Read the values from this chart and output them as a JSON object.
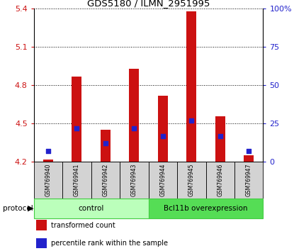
{
  "title": "GDS5180 / ILMN_2951995",
  "samples": [
    "GSM769940",
    "GSM769941",
    "GSM769942",
    "GSM769943",
    "GSM769944",
    "GSM769945",
    "GSM769946",
    "GSM769947"
  ],
  "transformed_count": [
    4.22,
    4.87,
    4.45,
    4.93,
    4.72,
    5.38,
    4.56,
    4.25
  ],
  "percentile_rank": [
    7,
    22,
    12,
    22,
    17,
    27,
    17,
    7
  ],
  "ylim_left": [
    4.2,
    5.4
  ],
  "ylim_right": [
    0,
    100
  ],
  "yticks_left": [
    4.2,
    4.5,
    4.8,
    5.1,
    5.4
  ],
  "yticks_right": [
    0,
    25,
    50,
    75,
    100
  ],
  "ytick_labels_right": [
    "0",
    "25",
    "50",
    "75",
    "100%"
  ],
  "bar_color": "#cc1111",
  "blue_marker_color": "#2222cc",
  "bar_bottom": 4.2,
  "groups": [
    {
      "label": "control",
      "samples": [
        0,
        1,
        2,
        3
      ],
      "color": "#bbffbb",
      "edge_color": "#44cc44"
    },
    {
      "label": "Bcl11b overexpression",
      "samples": [
        4,
        5,
        6,
        7
      ],
      "color": "#55dd55",
      "edge_color": "#44cc44"
    }
  ],
  "protocol_label": "protocol",
  "legend_items": [
    {
      "color": "#cc1111",
      "label": "transformed count"
    },
    {
      "color": "#2222cc",
      "label": "percentile rank within the sample"
    }
  ],
  "tick_color_left": "#cc1111",
  "tick_color_right": "#2222cc",
  "sample_box_color": "#d3d3d3",
  "bar_width": 0.35
}
